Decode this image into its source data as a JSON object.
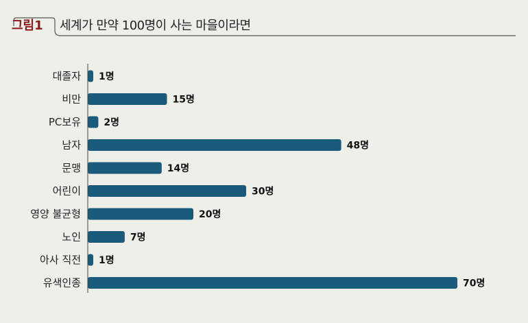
{
  "header": {
    "figure_tag": "그림1",
    "title": "세계가 만약 100명이 사는 마을이라면"
  },
  "colors": {
    "bar": "#1a5a7a",
    "accent": "#8b1a1a",
    "background": "#efefe9"
  },
  "chart_data": {
    "type": "bar",
    "orientation": "horizontal",
    "title": "세계가 만약 100명이 사는 마을이라면",
    "xlabel": "",
    "ylabel": "",
    "unit": "명",
    "xlim": [
      0,
      100
    ],
    "grid": false,
    "categories": [
      "대졸자",
      "비만",
      "PC보유",
      "남자",
      "문맹",
      "어린이",
      "영양 불균형",
      "노인",
      "아사 직전",
      "유색인종"
    ],
    "values": [
      1,
      15,
      2,
      48,
      14,
      30,
      20,
      7,
      1,
      70
    ],
    "value_labels": [
      "1명",
      "15명",
      "2명",
      "48명",
      "14명",
      "30명",
      "20명",
      "7명",
      "1명",
      "70명"
    ]
  }
}
